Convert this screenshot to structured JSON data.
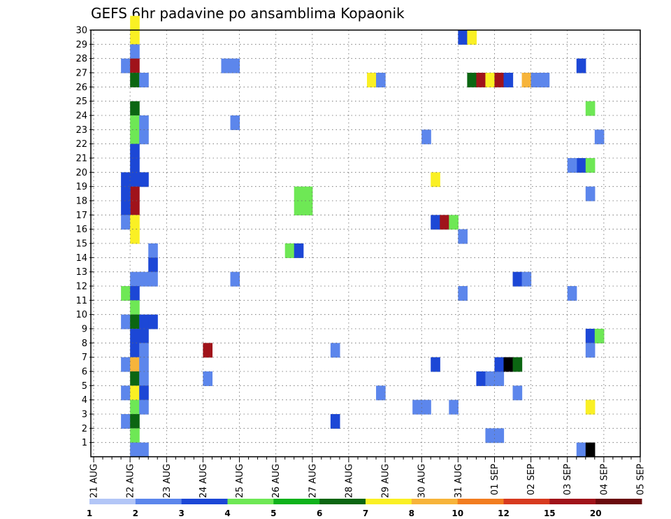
{
  "chart_data": {
    "type": "heatmap",
    "title": "GEFS 6hr padavine po ansamblima Kopaonik",
    "xlabel": "",
    "ylabel": "",
    "grid": true,
    "x_tick_labels": [
      "21 AUG",
      "22 AUG",
      "23 AUG",
      "24 AUG",
      "25 AUG",
      "26 AUG",
      "27 AUG",
      "28 AUG",
      "29 AUG",
      "30 AUG",
      "31 AUG",
      "01 SEP",
      "02 SEP",
      "03 SEP",
      "04 SEP",
      "05 SEP"
    ],
    "y_tick_labels": [
      "1",
      "2",
      "3",
      "4",
      "5",
      "6",
      "7",
      "8",
      "9",
      "10",
      "11",
      "12",
      "13",
      "14",
      "15",
      "16",
      "17",
      "18",
      "19",
      "20",
      "21",
      "22",
      "23",
      "24",
      "25",
      "26",
      "27",
      "28",
      "29",
      "30"
    ],
    "xlim": [
      0,
      60
    ],
    "ylim": [
      0,
      30
    ],
    "x_step_hours": 6,
    "legend": {
      "placement": "bottom",
      "thresholds": [
        "1",
        "2",
        "3",
        "4",
        "5",
        "6",
        "7",
        "8",
        "10",
        "12",
        "15",
        "20"
      ],
      "colors": [
        "#b3c6f7",
        "#5c86ec",
        "#1c47d6",
        "#6ee855",
        "#0fb21b",
        "#0b6612",
        "#faf024",
        "#f7b43a",
        "#f27d20",
        "#d73a1f",
        "#a0131a",
        "#6a0a0d"
      ]
    },
    "cells": [
      [
        4,
        30,
        6
      ],
      [
        4,
        29,
        6
      ],
      [
        4,
        28,
        1
      ],
      [
        3,
        27,
        1
      ],
      [
        4,
        27,
        10
      ],
      [
        4,
        26,
        5
      ],
      [
        5,
        26,
        1
      ],
      [
        4,
        24,
        5
      ],
      [
        4,
        23,
        3
      ],
      [
        5,
        23,
        1
      ],
      [
        4,
        22,
        3
      ],
      [
        5,
        22,
        1
      ],
      [
        4,
        21,
        2
      ],
      [
        4,
        20,
        2
      ],
      [
        4,
        19,
        2
      ],
      [
        3,
        19,
        2
      ],
      [
        4,
        18,
        10
      ],
      [
        5,
        19,
        2
      ],
      [
        3,
        18,
        2
      ],
      [
        4,
        17,
        10
      ],
      [
        3,
        17,
        2
      ],
      [
        3,
        16,
        1
      ],
      [
        4,
        16,
        6
      ],
      [
        4,
        15,
        6
      ],
      [
        6,
        14,
        1
      ],
      [
        6,
        13,
        2
      ],
      [
        4,
        12,
        1
      ],
      [
        5,
        12,
        1
      ],
      [
        6,
        12,
        1
      ],
      [
        3,
        11,
        3
      ],
      [
        4,
        11,
        2
      ],
      [
        4,
        10,
        3
      ],
      [
        3,
        9,
        1
      ],
      [
        4,
        9,
        5
      ],
      [
        5,
        9,
        2
      ],
      [
        6,
        9,
        2
      ],
      [
        4,
        8,
        2
      ],
      [
        5,
        8,
        2
      ],
      [
        4,
        7,
        2
      ],
      [
        5,
        7,
        1
      ],
      [
        3,
        6,
        1
      ],
      [
        4,
        6,
        7
      ],
      [
        5,
        6,
        1
      ],
      [
        4,
        5,
        5
      ],
      [
        5,
        5,
        1
      ],
      [
        3,
        4,
        1
      ],
      [
        4,
        4,
        6
      ],
      [
        5,
        4,
        2
      ],
      [
        4,
        3,
        3
      ],
      [
        5,
        3,
        1
      ],
      [
        3,
        2,
        1
      ],
      [
        4,
        2,
        5
      ],
      [
        4,
        1,
        3
      ],
      [
        4,
        0,
        1
      ],
      [
        5,
        0,
        1
      ],
      [
        14,
        27,
        1
      ],
      [
        15,
        27,
        1
      ],
      [
        15,
        23,
        1
      ],
      [
        15,
        12,
        1
      ],
      [
        12,
        7,
        10
      ],
      [
        12,
        5,
        1
      ],
      [
        22,
        18,
        3
      ],
      [
        23,
        18,
        3
      ],
      [
        22,
        17,
        3
      ],
      [
        23,
        17,
        3
      ],
      [
        21,
        14,
        3
      ],
      [
        22,
        14,
        2
      ],
      [
        26,
        7,
        1
      ],
      [
        26,
        2,
        2
      ],
      [
        30,
        26,
        6
      ],
      [
        31,
        26,
        1
      ],
      [
        31,
        4,
        1
      ],
      [
        36,
        22,
        1
      ],
      [
        37,
        19,
        6
      ],
      [
        37,
        16,
        2
      ],
      [
        38,
        16,
        10
      ],
      [
        39,
        16,
        3
      ],
      [
        35,
        3,
        1
      ],
      [
        36,
        3,
        1
      ],
      [
        37,
        6,
        2
      ],
      [
        39,
        3,
        1
      ],
      [
        40,
        29,
        2
      ],
      [
        41,
        29,
        6
      ],
      [
        40,
        15,
        1
      ],
      [
        40,
        11,
        1
      ],
      [
        41,
        26,
        5
      ],
      [
        42,
        26,
        10
      ],
      [
        43,
        26,
        6
      ],
      [
        44,
        26,
        10
      ],
      [
        45,
        26,
        2
      ],
      [
        47,
        26,
        7
      ],
      [
        48,
        26,
        1
      ],
      [
        43,
        1,
        1
      ],
      [
        44,
        1,
        1
      ],
      [
        42,
        5,
        2
      ],
      [
        43,
        5,
        1
      ],
      [
        44,
        5,
        1
      ],
      [
        44,
        6,
        2
      ],
      [
        45,
        6,
        12
      ],
      [
        46,
        6,
        5
      ],
      [
        46,
        4,
        1
      ],
      [
        46,
        12,
        2
      ],
      [
        47,
        12,
        1
      ],
      [
        49,
        26,
        1
      ],
      [
        53,
        27,
        2
      ],
      [
        53,
        20,
        2
      ],
      [
        54,
        20,
        3
      ],
      [
        52,
        20,
        1
      ],
      [
        52,
        11,
        1
      ],
      [
        53,
        0,
        1
      ],
      [
        54,
        24,
        3
      ],
      [
        55,
        22,
        1
      ],
      [
        54,
        18,
        1
      ],
      [
        54,
        8,
        2
      ],
      [
        55,
        8,
        3
      ],
      [
        54,
        7,
        1
      ],
      [
        54,
        3,
        6
      ],
      [
        54,
        0,
        12
      ]
    ]
  }
}
